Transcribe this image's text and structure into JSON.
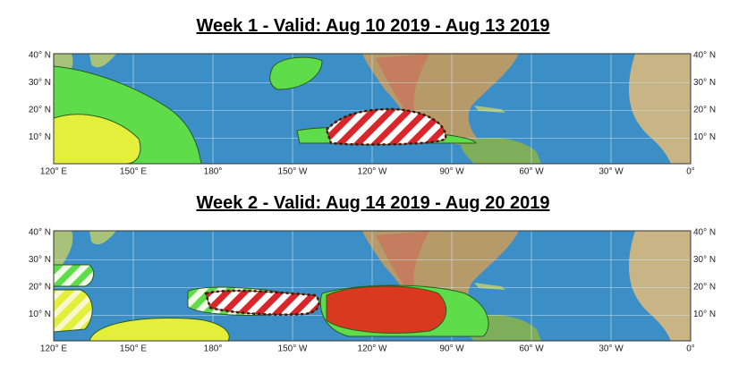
{
  "maps": [
    {
      "title": "Week 1 - Valid: Aug 10 2019 - Aug 13 2019",
      "lat_labels": [
        "40° N",
        "30° N",
        "20° N",
        "10° N"
      ],
      "lon_labels": [
        "120° E",
        "150° E",
        "180°",
        "150° W",
        "120° W",
        "90° W",
        "60° W",
        "30° W",
        "0°"
      ]
    },
    {
      "title": "Week 2 - Valid: Aug 14 2019 - Aug 20 2019",
      "lat_labels": [
        "40° N",
        "30° N",
        "20° N",
        "10° N"
      ],
      "lon_labels": [
        "120° E",
        "150° E",
        "180°",
        "150° W",
        "120° W",
        "90° W",
        "60° W",
        "30° W",
        "0°"
      ]
    }
  ]
}
